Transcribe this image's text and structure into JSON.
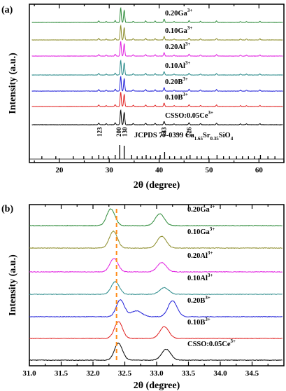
{
  "chart_data": [
    {
      "panel_label": "(a)",
      "type": "line",
      "xlabel": "2θ (degree)",
      "ylabel": "Intensity (a.u.)",
      "xlim": [
        14,
        65
      ],
      "xticks": [
        "20",
        "30",
        "40",
        "50",
        "60"
      ],
      "series": [
        {
          "label": "0.20Ga",
          "sup": "3+",
          "color": "#2e8b3a"
        },
        {
          "label": "0.10Ga",
          "sup": "3+",
          "color": "#8c8c2a"
        },
        {
          "label": "0.20Al",
          "sup": "3+",
          "color": "#e020e0"
        },
        {
          "label": "0.10Al",
          "sup": "3+",
          "color": "#2a8a8a"
        },
        {
          "label": "0.20B",
          "sup": "3+",
          "color": "#2020d8"
        },
        {
          "label": "0.10B",
          "sup": "3+",
          "color": "#e02020"
        },
        {
          "label": "CSSO:0.05Ce",
          "sup": "3+",
          "color": "#000000"
        }
      ],
      "peaks": [
        {
          "x": 27.9,
          "h": 0.1
        },
        {
          "x": 29.4,
          "h": 0.06
        },
        {
          "x": 31.2,
          "h": 0.12
        },
        {
          "x": 32.3,
          "h": 0.95
        },
        {
          "x": 33.0,
          "h": 0.8
        },
        {
          "x": 34.8,
          "h": 0.08
        },
        {
          "x": 37.3,
          "h": 0.1
        },
        {
          "x": 39.2,
          "h": 0.09
        },
        {
          "x": 41.0,
          "h": 0.22
        },
        {
          "x": 43.0,
          "h": 0.06
        },
        {
          "x": 46.0,
          "h": 0.12
        },
        {
          "x": 48.3,
          "h": 0.07
        },
        {
          "x": 51.5,
          "h": 0.1
        },
        {
          "x": 56.3,
          "h": 0.06
        },
        {
          "x": 57.5,
          "h": 0.06
        },
        {
          "x": 60.2,
          "h": 0.07
        }
      ],
      "hkl": [
        {
          "x": 28.1,
          "text": "123"
        },
        {
          "x": 31.9,
          "text": "200"
        },
        {
          "x": 33.1,
          "text": "130"
        },
        {
          "x": 41.0,
          "text": "043"
        },
        {
          "x": 46.0,
          "text": "226"
        }
      ],
      "reference": {
        "text_parts": [
          {
            "t": "JCPDS 77-0399 Ca",
            "s": "base"
          },
          {
            "t": "1.65",
            "s": "sub"
          },
          {
            "t": "Sr",
            "s": "base"
          },
          {
            "t": "0.35",
            "s": "sub"
          },
          {
            "t": "SiO",
            "s": "base"
          },
          {
            "t": "4",
            "s": "sub"
          }
        ],
        "lines": [
          {
            "x": 16.5,
            "h": 0.2
          },
          {
            "x": 19.3,
            "h": 0.2
          },
          {
            "x": 22.8,
            "h": 0.2
          },
          {
            "x": 24.9,
            "h": 0.2
          },
          {
            "x": 26.6,
            "h": 0.2
          },
          {
            "x": 27.9,
            "h": 0.3
          },
          {
            "x": 28.8,
            "h": 0.2
          },
          {
            "x": 29.8,
            "h": 0.2
          },
          {
            "x": 31.2,
            "h": 0.3
          },
          {
            "x": 32.1,
            "h": 1.0
          },
          {
            "x": 33.0,
            "h": 0.95
          },
          {
            "x": 34.5,
            "h": 0.3
          },
          {
            "x": 35.6,
            "h": 0.2
          },
          {
            "x": 36.6,
            "h": 0.2
          },
          {
            "x": 37.4,
            "h": 0.3
          },
          {
            "x": 38.3,
            "h": 0.2
          },
          {
            "x": 39.3,
            "h": 0.2
          },
          {
            "x": 40.2,
            "h": 0.3
          },
          {
            "x": 41.1,
            "h": 0.5
          },
          {
            "x": 42.1,
            "h": 0.2
          },
          {
            "x": 43.1,
            "h": 0.2
          },
          {
            "x": 44.4,
            "h": 0.2
          },
          {
            "x": 45.5,
            "h": 0.2
          },
          {
            "x": 46.2,
            "h": 0.3
          },
          {
            "x": 47.6,
            "h": 0.2
          },
          {
            "x": 48.5,
            "h": 0.2
          },
          {
            "x": 49.9,
            "h": 0.2
          },
          {
            "x": 51.6,
            "h": 0.3
          },
          {
            "x": 52.9,
            "h": 0.2
          },
          {
            "x": 54.1,
            "h": 0.2
          },
          {
            "x": 55.5,
            "h": 0.2
          },
          {
            "x": 56.7,
            "h": 0.2
          },
          {
            "x": 57.9,
            "h": 0.2
          },
          {
            "x": 59.1,
            "h": 0.2
          },
          {
            "x": 60.3,
            "h": 0.3
          },
          {
            "x": 61.8,
            "h": 0.2
          },
          {
            "x": 63.2,
            "h": 0.2
          }
        ]
      }
    },
    {
      "panel_label": "(b)",
      "type": "line",
      "xlabel": "2θ (degree)",
      "ylabel": "Intensity (a.u.)",
      "xlim": [
        31.0,
        35.0
      ],
      "xticks": [
        "31.0",
        "31.5",
        "32.0",
        "32.5",
        "33.0",
        "33.5",
        "34.0",
        "34.5"
      ],
      "reference_line_x": 32.37,
      "reference_line_color": "#ff8c1a",
      "series": [
        {
          "label": "0.20Ga",
          "sup": "3+",
          "color": "#2e8b3a",
          "p1": 32.28,
          "p2": 33.05,
          "a1": 1.0,
          "a2": 0.7
        },
        {
          "label": "0.10Ga",
          "sup": "3+",
          "color": "#8c8c2a",
          "p1": 32.32,
          "p2": 33.08,
          "a1": 1.0,
          "a2": 0.7
        },
        {
          "label": "0.20Al",
          "sup": "3+",
          "color": "#e020e0",
          "p1": 32.33,
          "p2": 33.08,
          "a1": 0.8,
          "a2": 0.55
        },
        {
          "label": "0.10Al",
          "sup": "3+",
          "color": "#2a8a8a",
          "p1": 32.35,
          "p2": 33.12,
          "a1": 0.75,
          "a2": 0.4
        },
        {
          "label": "0.20B",
          "sup": "3+",
          "color": "#2020d8",
          "p1": 32.43,
          "p2": 33.25,
          "a1": 1.0,
          "a2": 0.95
        },
        {
          "label": "0.10B",
          "sup": "3+",
          "color": "#e02020",
          "p1": 32.4,
          "p2": 33.12,
          "a1": 1.0,
          "a2": 0.7
        },
        {
          "label": "CSSO:0.05Ce",
          "sup": "3+",
          "color": "#000000",
          "p1": 32.4,
          "p2": 33.15,
          "a1": 1.0,
          "a2": 0.65
        }
      ]
    }
  ]
}
